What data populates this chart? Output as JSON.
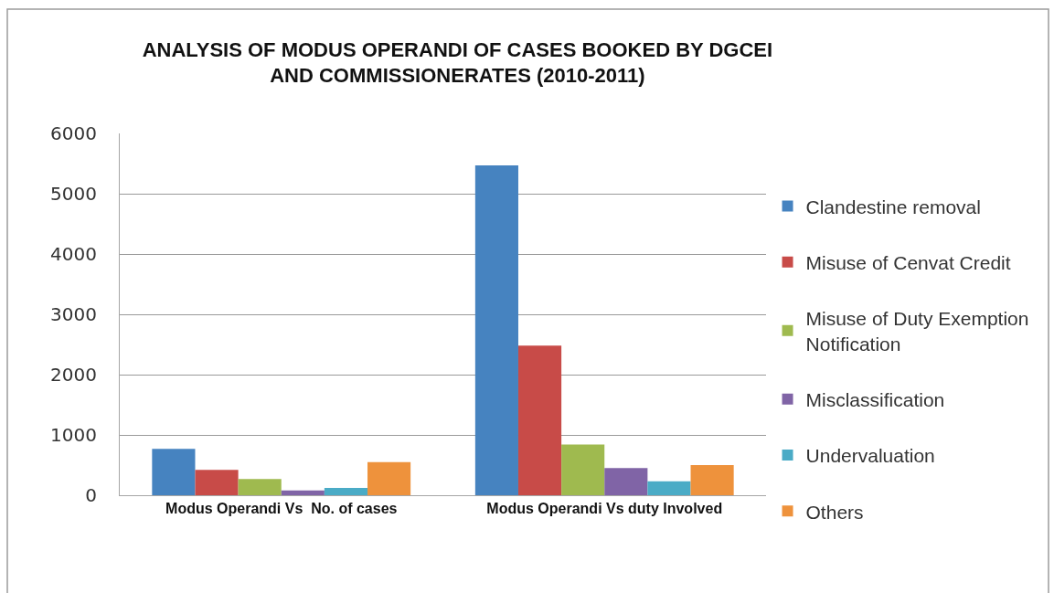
{
  "chart_data": {
    "type": "bar",
    "title": "ANALYSIS OF MODUS OPERANDI OF CASES BOOKED BY DGCEI AND COMMISSIONERATES (2010-2011)",
    "categories": [
      "Modus Operandi Vs  No. of cases",
      "Modus Operandi Vs duty Involved"
    ],
    "series": [
      {
        "name": "Clandestine removal",
        "color": "#4683c0",
        "values": [
          770,
          5470
        ]
      },
      {
        "name": "Misuse of Cenvat Credit",
        "color": "#c84b48",
        "values": [
          420,
          2480
        ]
      },
      {
        "name": "Misuse of Duty Exemption Notification",
        "color": "#9fba4f",
        "values": [
          270,
          840
        ]
      },
      {
        "name": "Misclassification",
        "color": "#8064a6",
        "values": [
          80,
          450
        ]
      },
      {
        "name": "Undervaluation",
        "color": "#4aabc6",
        "values": [
          120,
          230
        ]
      },
      {
        "name": "Others",
        "color": "#ee923c",
        "values": [
          550,
          500
        ]
      }
    ],
    "ylim": [
      0,
      6000
    ],
    "yticks": [
      0,
      1000,
      2000,
      3000,
      4000,
      5000,
      6000
    ],
    "grid": "y",
    "legend": "right"
  }
}
